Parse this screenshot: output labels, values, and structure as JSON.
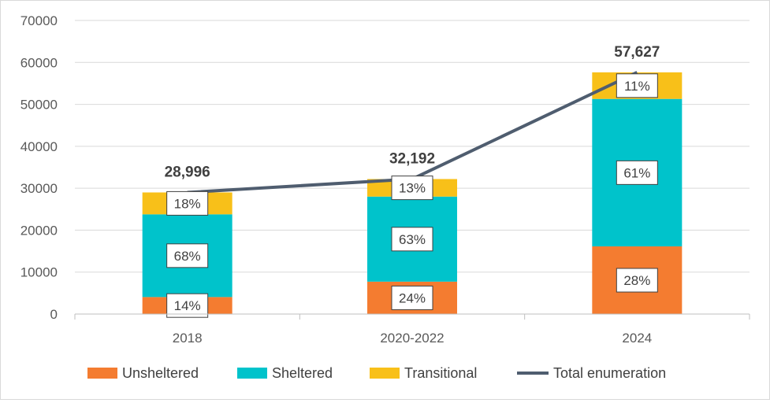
{
  "colors": {
    "Unsheltered": "#f47c30",
    "Sheltered": "#00c3cb",
    "Transitional": "#f8c019",
    "Total enumeration": "#4f5d6f",
    "gridline": "#d9d9d9",
    "axis": "#bfbfbf"
  },
  "chart_data": {
    "type": "bar",
    "stacked": true,
    "title": "",
    "xlabel": "",
    "ylabel": "",
    "categories": [
      "2018",
      "2020-2022",
      "2024"
    ],
    "ylim": [
      0,
      70000
    ],
    "yticks": [
      0,
      10000,
      20000,
      30000,
      40000,
      50000,
      60000,
      70000
    ],
    "grid": true,
    "legend_position": "bottom",
    "series": [
      {
        "name": "Unsheltered",
        "type": "bar",
        "values": [
          4060,
          7726,
          16136
        ],
        "labels": [
          "14%",
          "24%",
          "28%"
        ]
      },
      {
        "name": "Sheltered",
        "type": "bar",
        "values": [
          19717,
          20281,
          35152
        ],
        "labels": [
          "68%",
          "63%",
          "61%"
        ]
      },
      {
        "name": "Transitional",
        "type": "bar",
        "values": [
          5219,
          4185,
          6339
        ],
        "labels": [
          "18%",
          "13%",
          "11%"
        ]
      },
      {
        "name": "Total enumeration",
        "type": "line",
        "values": [
          28996,
          32192,
          57627
        ],
        "labels": [
          "28,996",
          "32,192",
          "57,627"
        ]
      }
    ]
  }
}
